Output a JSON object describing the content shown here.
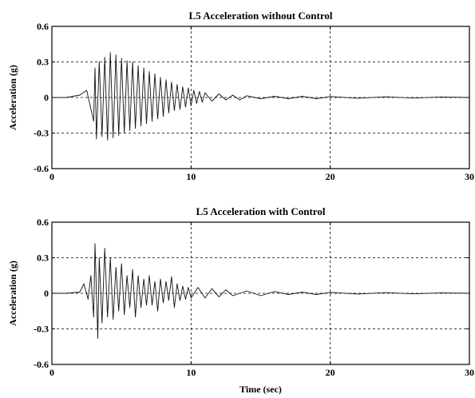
{
  "colors": {
    "line": "#111111",
    "axes": "#000000",
    "background": "#ffffff"
  },
  "chart_data": [
    {
      "type": "line",
      "title": "L5 Acceleration without Control",
      "xlabel": "",
      "ylabel": "Acceleration (g)",
      "xlim": [
        0,
        30
      ],
      "ylim": [
        -0.6,
        0.6
      ],
      "xticks": [
        "0",
        "10",
        "20",
        "30"
      ],
      "yticks": [
        "0.6",
        "0.3",
        "0",
        "-0.3",
        "-0.6"
      ],
      "grid": true,
      "series": [
        {
          "x": [
            0,
            1,
            2,
            2.5,
            3.0,
            3.1,
            3.2,
            3.4,
            3.6,
            3.8,
            4.0,
            4.2,
            4.4,
            4.6,
            4.8,
            5.0,
            5.2,
            5.4,
            5.6,
            5.8,
            6.0,
            6.2,
            6.4,
            6.6,
            6.8,
            7.0,
            7.2,
            7.4,
            7.6,
            7.8,
            8.0,
            8.2,
            8.4,
            8.6,
            8.8,
            9.0,
            9.2,
            9.4,
            9.6,
            9.8,
            10.0,
            10.2,
            10.4,
            10.6,
            10.8,
            11.0,
            11.5,
            12.0,
            12.5,
            13.0,
            13.5,
            14.0,
            15.0,
            16.0,
            17.0,
            18.0,
            19.0,
            20.0,
            22.0,
            24.0,
            26.0,
            28.0,
            30.0
          ],
          "y": [
            0,
            0.0,
            0.02,
            0.06,
            -0.2,
            0.25,
            -0.35,
            0.3,
            -0.33,
            0.34,
            -0.36,
            0.38,
            -0.34,
            0.36,
            -0.32,
            0.33,
            -0.3,
            0.31,
            -0.28,
            0.3,
            -0.26,
            0.27,
            -0.24,
            0.25,
            -0.22,
            0.22,
            -0.2,
            0.2,
            -0.18,
            0.17,
            -0.16,
            0.15,
            -0.13,
            0.13,
            -0.11,
            0.11,
            -0.1,
            0.09,
            -0.08,
            0.08,
            -0.07,
            0.06,
            -0.05,
            0.05,
            -0.04,
            0.04,
            -0.03,
            0.03,
            -0.02,
            0.02,
            -0.02,
            0.015,
            -0.01,
            0.01,
            -0.01,
            0.01,
            -0.01,
            0.008,
            -0.006,
            0.006,
            -0.005,
            0.005,
            0
          ]
        }
      ]
    },
    {
      "type": "line",
      "title": "L5 Acceleration with Control",
      "xlabel": "Time (sec)",
      "ylabel": "Acceleration (g)",
      "xlim": [
        0,
        30
      ],
      "ylim": [
        -0.6,
        0.6
      ],
      "xticks": [
        "0",
        "10",
        "20",
        "30"
      ],
      "yticks": [
        "0.6",
        "0.3",
        "0",
        "-0.3",
        "-0.6"
      ],
      "grid": true,
      "series": [
        {
          "x": [
            0,
            1,
            2,
            2.3,
            2.6,
            2.8,
            3.0,
            3.1,
            3.3,
            3.4,
            3.6,
            3.8,
            4.0,
            4.2,
            4.4,
            4.6,
            4.8,
            5.0,
            5.2,
            5.4,
            5.6,
            5.8,
            6.0,
            6.2,
            6.4,
            6.6,
            6.8,
            7.0,
            7.2,
            7.4,
            7.6,
            7.8,
            8.0,
            8.2,
            8.4,
            8.6,
            8.8,
            9.0,
            9.2,
            9.4,
            9.6,
            9.8,
            10.0,
            10.5,
            11.0,
            11.5,
            12.0,
            12.5,
            13.0,
            14.0,
            15.0,
            16.0,
            17.0,
            18.0,
            19.0,
            20.0,
            22.0,
            24.0,
            26.0,
            28.0,
            30.0
          ],
          "y": [
            0,
            0.0,
            0.01,
            0.08,
            -0.05,
            0.15,
            -0.2,
            0.42,
            -0.38,
            0.3,
            -0.25,
            0.38,
            -0.2,
            0.3,
            -0.22,
            0.22,
            -0.15,
            0.25,
            -0.18,
            0.15,
            -0.12,
            0.2,
            -0.2,
            0.15,
            -0.12,
            0.12,
            -0.1,
            0.15,
            -0.1,
            0.1,
            -0.15,
            0.12,
            -0.08,
            0.1,
            -0.06,
            0.14,
            -0.12,
            0.08,
            -0.06,
            0.06,
            -0.05,
            0.05,
            -0.04,
            0.05,
            -0.04,
            0.04,
            -0.03,
            0.03,
            -0.02,
            0.02,
            -0.02,
            0.015,
            -0.01,
            0.01,
            -0.01,
            0.008,
            -0.006,
            0.006,
            -0.005,
            0.004,
            0
          ]
        }
      ]
    }
  ]
}
